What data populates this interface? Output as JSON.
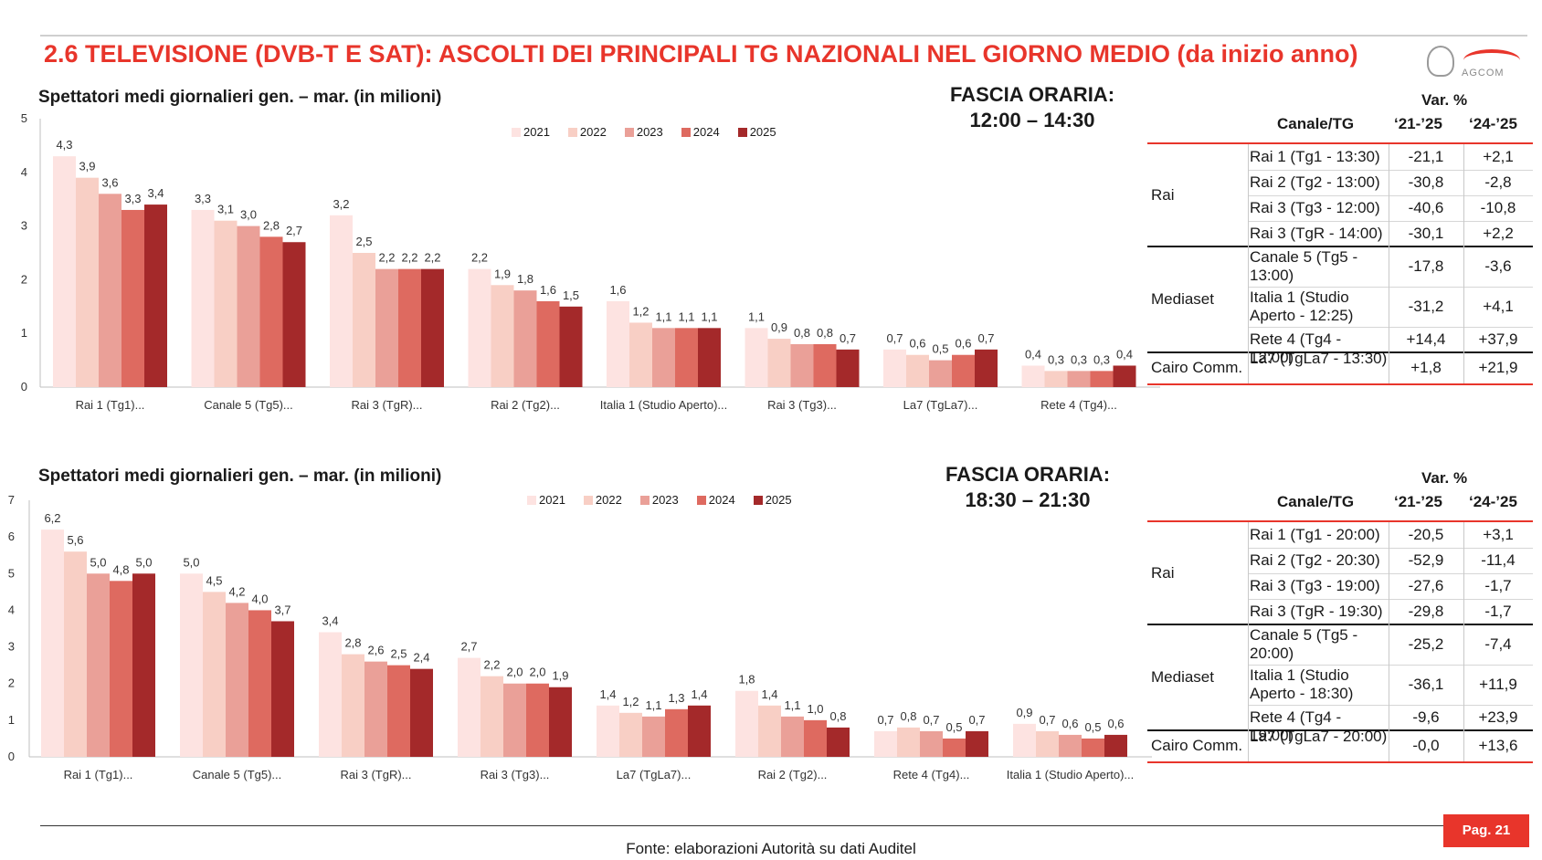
{
  "title": "2.6 TELEVISIONE (DVB-T E SAT): ASCOLTI DEI PRINCIPALI TG NAZIONALI NEL GIORNO MEDIO (da inizio anno)",
  "logo_text": "AGCOM",
  "colors": {
    "accent": "#e8352b",
    "series": [
      "#fde3e1",
      "#f8cfc5",
      "#eaa098",
      "#de6a60",
      "#a4292a"
    ]
  },
  "panel1": {
    "subtitle": "Spettatori medi giornalieri gen. – mar. (in milioni)",
    "fascia_label": "FASCIA ORARIA:",
    "fascia_time": "12:00 – 14:30",
    "table": {
      "var_header": "Var. %",
      "col_canale": "Canale/TG",
      "col_a": "‘21-’25",
      "col_b": "‘24-’25",
      "groups": [
        {
          "name": "Rai",
          "rows": [
            {
              "tg": "Rai 1 (Tg1  - 13:30)",
              "a": "-21,1",
              "b": "+2,1"
            },
            {
              "tg": "Rai 2 (Tg2 - 13:00)",
              "a": "-30,8",
              "b": "-2,8"
            },
            {
              "tg": "Rai 3 (Tg3 - 12:00)",
              "a": "-40,6",
              "b": "-10,8"
            },
            {
              "tg": "Rai 3 (TgR - 14:00)",
              "a": "-30,1",
              "b": "+2,2"
            }
          ]
        },
        {
          "name": "Mediaset",
          "rows": [
            {
              "tg": "Canale 5 (Tg5 - 13:00)",
              "a": "-17,8",
              "b": "-3,6"
            },
            {
              "tg": "Italia 1  (Studio Aperto - 12:25)",
              "a": "-31,2",
              "b": "+4,1"
            },
            {
              "tg": "Rete 4 (Tg4 - 12:00)",
              "a": "+14,4",
              "b": "+37,9"
            }
          ]
        },
        {
          "name": "Cairo Comm.",
          "rows": [
            {
              "tg": "La7 (TgLa7 - 13:30)",
              "a": "+1,8",
              "b": "+21,9"
            }
          ]
        }
      ]
    }
  },
  "panel2": {
    "subtitle": "Spettatori medi giornalieri gen. – mar. (in milioni)",
    "fascia_label": "FASCIA ORARIA:",
    "fascia_time": "18:30 – 21:30",
    "table": {
      "var_header": "Var. %",
      "col_canale": "Canale/TG",
      "col_a": "‘21-’25",
      "col_b": "‘24-’25",
      "groups": [
        {
          "name": "Rai",
          "rows": [
            {
              "tg": "Rai 1 (Tg1  - 20:00)",
              "a": "-20,5",
              "b": "+3,1"
            },
            {
              "tg": "Rai 2 (Tg2 - 20:30)",
              "a": "-52,9",
              "b": "-11,4"
            },
            {
              "tg": "Rai 3 (Tg3 - 19:00)",
              "a": "-27,6",
              "b": "-1,7"
            },
            {
              "tg": "Rai 3 (TgR - 19:30)",
              "a": "-29,8",
              "b": "-1,7"
            }
          ]
        },
        {
          "name": "Mediaset",
          "rows": [
            {
              "tg": "Canale 5 (Tg5 - 20:00)",
              "a": "-25,2",
              "b": "-7,4"
            },
            {
              "tg": "Italia 1  (Studio Aperto - 18:30)",
              "a": "-36,1",
              "b": "+11,9"
            },
            {
              "tg": "Rete 4 (Tg4 - 19:00)",
              "a": "-9,6",
              "b": "+23,9"
            }
          ]
        },
        {
          "name": "Cairo Comm.",
          "rows": [
            {
              "tg": "La7 (TgLa7 - 20:00)",
              "a": "-0,0",
              "b": "+13,6"
            }
          ]
        }
      ]
    }
  },
  "chart_data": [
    {
      "type": "bar",
      "title": "Spettatori medi giornalieri gen. – mar. (in milioni)",
      "categories": [
        "Rai 1 (Tg1)...",
        "Canale 5 (Tg5)...",
        "Rai 3 (TgR)...",
        "Rai 2 (Tg2)...",
        "Italia 1 (Studio Aperto)...",
        "Rai 3 (Tg3)...",
        "La7 (TgLa7)...",
        "Rete 4 (Tg4)..."
      ],
      "series": [
        {
          "name": "2021",
          "values": [
            4.3,
            3.3,
            3.2,
            2.2,
            1.6,
            1.1,
            0.7,
            0.4
          ],
          "labels": [
            "4,3",
            "3,3",
            "3,2",
            "2,2",
            "1,6",
            "1,1",
            "0,7",
            "0,4"
          ]
        },
        {
          "name": "2022",
          "values": [
            3.9,
            3.1,
            2.5,
            1.9,
            1.2,
            0.9,
            0.6,
            0.3
          ],
          "labels": [
            "3,9",
            "3,1",
            "2,5",
            "1,9",
            "1,2",
            "0,9",
            "0,6",
            "0,3"
          ]
        },
        {
          "name": "2023",
          "values": [
            3.6,
            3.0,
            2.2,
            1.8,
            1.1,
            0.8,
            0.5,
            0.3
          ],
          "labels": [
            "3,6",
            "3,0",
            "2,2",
            "1,8",
            "1,1",
            "0,8",
            "0,5",
            "0,3"
          ]
        },
        {
          "name": "2024",
          "values": [
            3.3,
            2.8,
            2.2,
            1.6,
            1.1,
            0.8,
            0.6,
            0.3
          ],
          "labels": [
            "3,3",
            "2,8",
            "2,2",
            "1,6",
            "1,1",
            "0,8",
            "0,6",
            "0,3"
          ]
        },
        {
          "name": "2025",
          "values": [
            3.4,
            2.7,
            2.2,
            1.5,
            1.1,
            0.7,
            0.7,
            0.4
          ],
          "labels": [
            "3,4",
            "2,7",
            "2,2",
            "1,5",
            "1,1",
            "0,7",
            "0,7",
            "0,4"
          ]
        }
      ],
      "ylim": [
        0,
        5
      ],
      "yticks": [
        "0",
        "1",
        "2",
        "3",
        "4",
        "5"
      ],
      "legend_position": "top",
      "grid": false
    },
    {
      "type": "bar",
      "title": "Spettatori medi giornalieri gen. – mar. (in milioni)",
      "categories": [
        "Rai 1 (Tg1)...",
        "Canale 5 (Tg5)...",
        "Rai 3 (TgR)...",
        "Rai 3 (Tg3)...",
        "La7 (TgLa7)...",
        "Rai 2 (Tg2)...",
        "Rete 4 (Tg4)...",
        "Italia 1 (Studio Aperto)..."
      ],
      "series": [
        {
          "name": "2021",
          "values": [
            6.2,
            5.0,
            3.4,
            2.7,
            1.4,
            1.8,
            0.7,
            0.9
          ],
          "labels": [
            "6,2",
            "5,0",
            "3,4",
            "2,7",
            "1,4",
            "1,8",
            "0,7",
            "0,9"
          ]
        },
        {
          "name": "2022",
          "values": [
            5.6,
            4.5,
            2.8,
            2.2,
            1.2,
            1.4,
            0.8,
            0.7
          ],
          "labels": [
            "5,6",
            "4,5",
            "2,8",
            "2,2",
            "1,2",
            "1,4",
            "0,8",
            "0,7"
          ]
        },
        {
          "name": "2023",
          "values": [
            5.0,
            4.2,
            2.6,
            2.0,
            1.1,
            1.1,
            0.7,
            0.6
          ],
          "labels": [
            "5,0",
            "4,2",
            "2,6",
            "2,0",
            "1,1",
            "1,1",
            "0,7",
            "0,6"
          ]
        },
        {
          "name": "2024",
          "values": [
            4.8,
            4.0,
            2.5,
            2.0,
            1.3,
            1.0,
            0.5,
            0.5
          ],
          "labels": [
            "4,8",
            "4,0",
            "2,5",
            "2,0",
            "1,3",
            "1,0",
            "0,5",
            "0,5"
          ]
        },
        {
          "name": "2025",
          "values": [
            5.0,
            3.7,
            2.4,
            1.9,
            1.4,
            0.8,
            0.7,
            0.6
          ],
          "labels": [
            "5,0",
            "3,7",
            "2,4",
            "1,9",
            "1,4",
            "0,8",
            "0,7",
            "0,6"
          ]
        }
      ],
      "ylim": [
        0,
        7
      ],
      "yticks": [
        "0",
        "1",
        "2",
        "3",
        "4",
        "5",
        "6",
        "7"
      ],
      "legend_position": "top",
      "grid": false
    }
  ],
  "footer": {
    "page": "Pag. 21",
    "source": "Fonte: elaborazioni Autorità su dati Auditel"
  }
}
